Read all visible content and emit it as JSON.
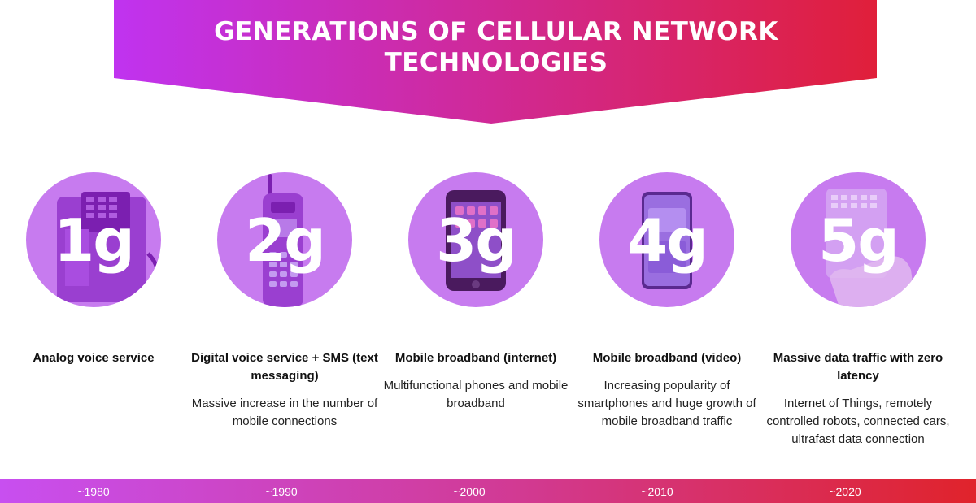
{
  "title": {
    "line1": "GENERATIONS OF CELLULAR NETWORK",
    "line2": "TECHNOLOGIES"
  },
  "colors": {
    "banner_start": "#c033f0",
    "banner_end": "#e01f3a",
    "circle_fill": "#c77bef"
  },
  "generations": [
    {
      "label": "1g",
      "heading": "Analog voice service",
      "description": "",
      "icon": "brick-phone-icon"
    },
    {
      "label": "2g",
      "heading": "Digital voice service + SMS (text messaging)",
      "description": "Massive increase in the number of mobile connections",
      "icon": "keypad-phone-icon"
    },
    {
      "label": "3g",
      "heading": "Mobile broadband (internet)",
      "description": "Multifunctional phones and mobile broadband",
      "icon": "early-smartphone-icon"
    },
    {
      "label": "4g",
      "heading": "Mobile broadband (video)",
      "description": "Increasing popularity of smartphones and huge growth of mobile broadband traffic",
      "icon": "modern-smartphone-icon"
    },
    {
      "label": "5g",
      "heading": "Massive data traffic with zero latency",
      "description": "Internet of Things, remotely controlled robots, connected cars, ultrafast data connection",
      "icon": "transparent-phone-icon"
    }
  ],
  "timeline": [
    "~1980",
    "~1990",
    "~2000",
    "~2010",
    "~2020"
  ]
}
